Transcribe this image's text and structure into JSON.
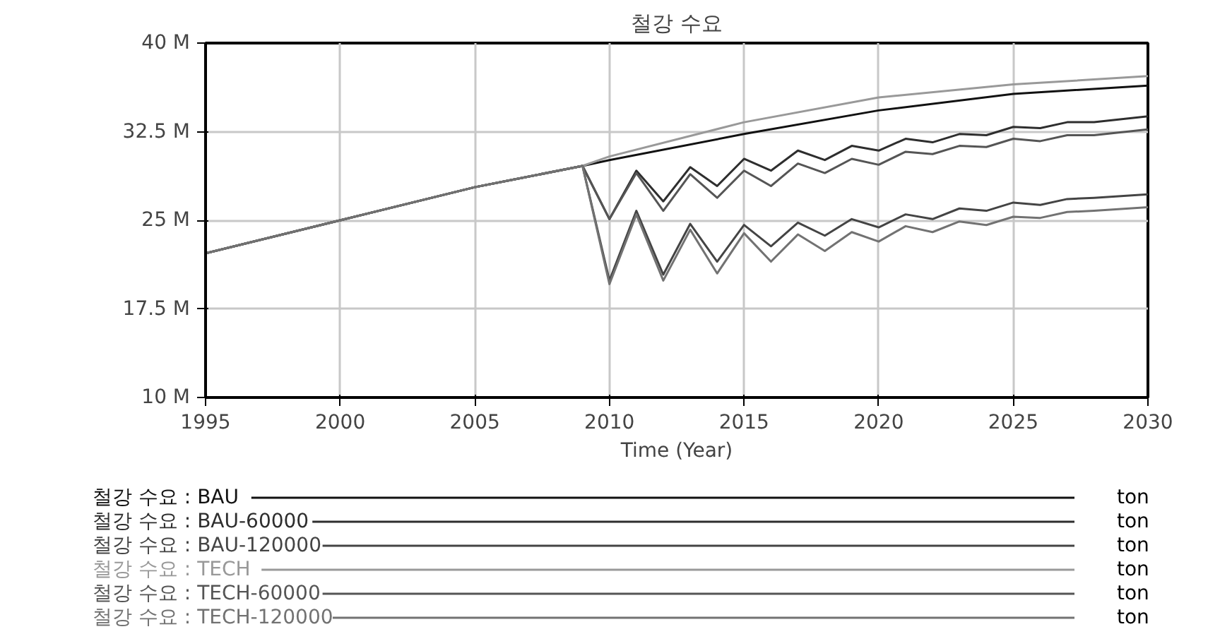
{
  "chart_data": {
    "type": "line",
    "title": "철강 수요",
    "xlabel": "Time (Year)",
    "xlim": [
      1995,
      2030
    ],
    "xticks": [
      1995,
      2000,
      2005,
      2010,
      2015,
      2020,
      2025,
      2030
    ],
    "ylim": [
      10,
      40
    ],
    "yticks": [
      {
        "value": 10,
        "label": "10 M"
      },
      {
        "value": 17.5,
        "label": "17.5 M"
      },
      {
        "value": 25,
        "label": "25 M"
      },
      {
        "value": 32.5,
        "label": "32.5 M"
      },
      {
        "value": 40,
        "label": "40 M"
      }
    ],
    "grid": true,
    "legend": "bottom",
    "marker": "none",
    "line_style": "solid",
    "annotations": [
      "ton",
      "ton",
      "ton",
      "ton",
      "ton",
      "ton"
    ],
    "series": [
      {
        "name": "철강 수요 : BAU",
        "color": "#111111",
        "x": [
          1995,
          2000,
          2005,
          2009,
          2010,
          2015,
          2020,
          2025,
          2030
        ],
        "values": [
          22.2,
          25.0,
          27.8,
          29.6,
          30.1,
          32.3,
          34.3,
          35.7,
          36.4
        ]
      },
      {
        "name": "철강 수요 : BAU-60000",
        "color": "#2e2e2e",
        "x": [
          1995,
          2000,
          2005,
          2009,
          2010,
          2011,
          2012,
          2013,
          2014,
          2015,
          2016,
          2017,
          2018,
          2019,
          2020,
          2021,
          2022,
          2023,
          2024,
          2025,
          2026,
          2027,
          2028,
          2030
        ],
        "values": [
          22.2,
          25.0,
          27.8,
          29.6,
          25.1,
          29.2,
          26.6,
          29.5,
          27.9,
          30.2,
          29.2,
          30.9,
          30.1,
          31.3,
          30.9,
          31.9,
          31.6,
          32.3,
          32.2,
          32.9,
          32.8,
          33.3,
          33.3,
          33.8
        ]
      },
      {
        "name": "철강 수요 : BAU-120000",
        "color": "#444444",
        "x": [
          1995,
          2000,
          2005,
          2009,
          2010,
          2011,
          2012,
          2013,
          2014,
          2015,
          2016,
          2017,
          2018,
          2019,
          2020,
          2021,
          2022,
          2023,
          2024,
          2025,
          2026,
          2027,
          2028,
          2030
        ],
        "values": [
          22.2,
          25.0,
          27.8,
          29.6,
          19.9,
          25.8,
          20.4,
          24.7,
          21.5,
          24.6,
          22.8,
          24.8,
          23.7,
          25.1,
          24.4,
          25.5,
          25.1,
          26.0,
          25.8,
          26.5,
          26.3,
          26.8,
          26.9,
          27.2
        ]
      },
      {
        "name": "철강 수요 : TECH",
        "color": "#999999",
        "x": [
          1995,
          2000,
          2005,
          2009,
          2010,
          2015,
          2020,
          2025,
          2030
        ],
        "values": [
          22.2,
          25.0,
          27.8,
          29.6,
          30.4,
          33.3,
          35.4,
          36.5,
          37.2
        ]
      },
      {
        "name": "철강 수요 : TECH-60000",
        "color": "#555555",
        "x": [
          1995,
          2000,
          2005,
          2009,
          2010,
          2011,
          2012,
          2013,
          2014,
          2015,
          2016,
          2017,
          2018,
          2019,
          2020,
          2021,
          2022,
          2023,
          2024,
          2025,
          2026,
          2027,
          2028,
          2030
        ],
        "values": [
          22.2,
          25.0,
          27.8,
          29.6,
          25.1,
          29.0,
          25.8,
          28.9,
          26.9,
          29.2,
          27.9,
          29.8,
          29.0,
          30.2,
          29.7,
          30.8,
          30.6,
          31.3,
          31.2,
          31.9,
          31.7,
          32.2,
          32.2,
          32.7
        ]
      },
      {
        "name": "철강 수요 : TECH-120000",
        "color": "#727272",
        "x": [
          1995,
          2000,
          2005,
          2009,
          2010,
          2011,
          2012,
          2013,
          2014,
          2015,
          2016,
          2017,
          2018,
          2019,
          2020,
          2021,
          2022,
          2023,
          2024,
          2025,
          2026,
          2027,
          2028,
          2030
        ],
        "values": [
          22.2,
          25.0,
          27.8,
          29.6,
          19.6,
          25.5,
          19.9,
          24.2,
          20.5,
          23.9,
          21.5,
          23.8,
          22.4,
          24.0,
          23.2,
          24.5,
          24.0,
          24.9,
          24.6,
          25.3,
          25.2,
          25.7,
          25.8,
          26.1
        ]
      }
    ]
  }
}
